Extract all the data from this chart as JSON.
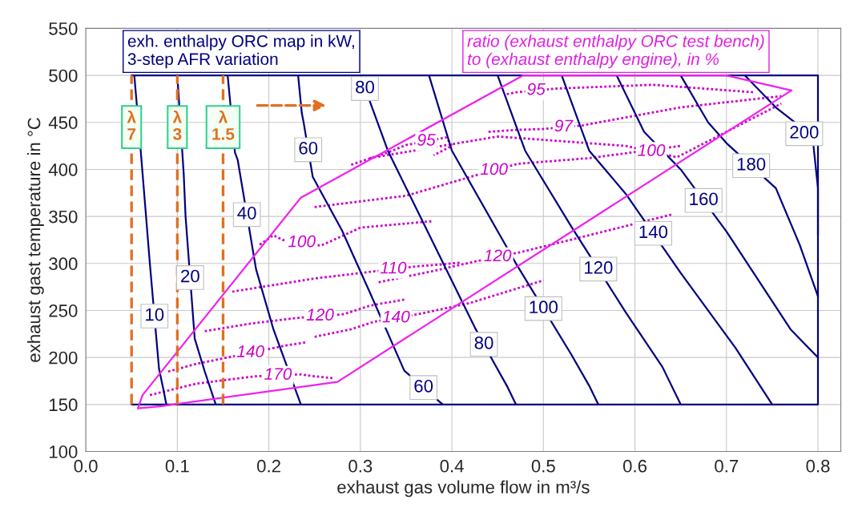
{
  "chart_data": {
    "type": "line",
    "title": "exh. enthalpy ORC map in kW,\n3-step AFR variation",
    "subtitle": "ratio (exhaust enthalpy ORC test bench)\nto (exhaust enthalpy engine), in %",
    "xlabel": "exhaust gas volume flow in m³/s",
    "ylabel": "exhaust gast temperature in °C",
    "xlim": [
      0,
      0.825
    ],
    "ylim": [
      100,
      550
    ],
    "xticks": [
      {
        "value": 0,
        "label": "0.0"
      },
      0.1,
      0.2,
      0.3,
      0.4,
      0.5,
      0.6,
      0.7,
      0.8
    ],
    "yticks": [
      100,
      150,
      200,
      250,
      300,
      350,
      400,
      450,
      500,
      550
    ],
    "grid": true,
    "annotations": [
      {
        "text": "80",
        "x": 0.305,
        "y": 486
      },
      {
        "text": "60",
        "x": 0.243,
        "y": 421
      },
      {
        "text": "80",
        "x": 0.435,
        "y": 214
      },
      {
        "text": "60",
        "x": 0.369,
        "y": 168
      }
    ],
    "series": [
      {
        "color": "#000080",
        "line_style": "solid",
        "x": [
          0.05,
          0.8,
          0.8,
          0.05
        ],
        "values": [
          150,
          150,
          500,
          500
        ]
      },
      {
        "name": "10",
        "color": "#000080",
        "line_style": "solid",
        "x": [
          0.053,
          0.06,
          0.07,
          0.08,
          0.085,
          0.088
        ],
        "values": [
          500,
          420,
          300,
          188,
          165,
          150
        ]
      },
      {
        "name": "20",
        "color": "#000080",
        "line_style": "solid",
        "x": [
          0.1,
          0.107,
          0.109,
          0.119,
          0.13,
          0.142
        ],
        "values": [
          500,
          395,
          350,
          220,
          185,
          150
        ]
      },
      {
        "name": "40",
        "color": "#000080",
        "line_style": "solid",
        "x": [
          0.155,
          0.163,
          0.166,
          0.186,
          0.205,
          0.235
        ],
        "values": [
          500,
          418,
          410,
          294,
          230,
          150
        ]
      },
      {
        "color": "#000080",
        "line_style": "solid",
        "x": [
          0.232,
          0.234,
          0.236,
          0.238,
          0.248,
          0.28,
          0.31,
          0.348,
          0.39
        ],
        "values": [
          500,
          480,
          460,
          450,
          392,
          335,
          270,
          186,
          150
        ]
      },
      {
        "color": "#000080",
        "line_style": "solid",
        "x": [
          0.3,
          0.33,
          0.425,
          0.445,
          0.46,
          0.47
        ],
        "values": [
          500,
          420,
          232,
          196,
          170,
          150
        ]
      },
      {
        "name": "100",
        "color": "#000080",
        "line_style": "solid",
        "x": [
          0.375,
          0.4,
          0.47,
          0.53,
          0.55,
          0.56
        ],
        "values": [
          500,
          420,
          300,
          204,
          170,
          150
        ]
      },
      {
        "name": "120",
        "color": "#000080",
        "line_style": "solid",
        "x": [
          0.45,
          0.48,
          0.53,
          0.59,
          0.63,
          0.65
        ],
        "values": [
          500,
          420,
          340,
          248,
          190,
          150
        ]
      },
      {
        "name": "140",
        "color": "#000080",
        "line_style": "solid",
        "x": [
          0.52,
          0.55,
          0.59,
          0.65,
          0.71,
          0.75
        ],
        "values": [
          500,
          420,
          374,
          290,
          210,
          150
        ]
      },
      {
        "name": "160",
        "color": "#000080",
        "line_style": "solid",
        "x": [
          0.58,
          0.61,
          0.65,
          0.7,
          0.77,
          0.8
        ],
        "values": [
          500,
          440,
          400,
          334,
          230,
          200
        ]
      },
      {
        "name": "180",
        "color": "#000080",
        "line_style": "solid",
        "x": [
          0.65,
          0.68,
          0.7,
          0.754,
          0.78,
          0.8
        ],
        "values": [
          500,
          450,
          428,
          380,
          320,
          265
        ]
      },
      {
        "name": "200",
        "color": "#000080",
        "line_style": "solid",
        "x": [
          0.72,
          0.755,
          0.775,
          0.795,
          0.8,
          0.8
        ],
        "values": [
          500,
          465,
          450,
          426,
          380,
          330
        ]
      },
      {
        "color": "#ee22ee",
        "line_style": "solid",
        "x": [
          0.057,
          0.062,
          0.235,
          0.478,
          0.7,
          0.771
        ],
        "values": [
          146,
          160,
          370,
          500,
          500,
          484
        ]
      },
      {
        "color": "#ee22ee",
        "line_style": "solid",
        "x": [
          0.057,
          0.081,
          0.275,
          0.771
        ],
        "values": [
          146,
          148,
          174,
          484
        ]
      },
      {
        "name": "95",
        "color": "#cc00cc",
        "line_style": "dotted",
        "x": [
          0.46,
          0.465,
          0.47,
          0.514,
          0.62,
          0.73
        ],
        "values": [
          480,
          481,
          482,
          486,
          490,
          482
        ]
      },
      {
        "name": "97",
        "color": "#cc00cc",
        "line_style": "dotted",
        "x": [
          0.44,
          0.47,
          0.5,
          0.544,
          0.65,
          0.76
        ],
        "values": [
          440,
          442,
          443,
          447,
          466,
          478
        ]
      },
      {
        "name": "95",
        "color": "#cc00cc",
        "line_style": "dotted",
        "x": [
          0.29,
          0.33,
          0.35,
          0.394,
          0.4,
          0.38
        ],
        "values": [
          405,
          418,
          426,
          434,
          425,
          415
        ]
      },
      {
        "name": "100",
        "color": "#cc00cc",
        "line_style": "dotted",
        "x": [
          0.31,
          0.45,
          0.59,
          0.646,
          0.7,
          0.76
        ],
        "values": [
          412,
          435,
          425,
          413,
          440,
          470
        ]
      },
      {
        "name": "100",
        "color": "#cc00cc",
        "line_style": "dotted",
        "x": [
          0.25,
          0.35,
          0.42,
          0.472,
          0.55,
          0.65
        ],
        "values": [
          360,
          372,
          392,
          406,
          412,
          425
        ]
      },
      {
        "name": "100",
        "color": "#cc00cc",
        "line_style": "dotted",
        "x": [
          0.19,
          0.205,
          0.215,
          0.257,
          0.3,
          0.38
        ],
        "values": [
          320,
          330,
          325,
          319,
          338,
          345
        ]
      },
      {
        "name": "110",
        "color": "#cc00cc",
        "line_style": "dotted",
        "x": [
          0.16,
          0.25,
          0.31,
          0.362,
          0.39,
          0.41
        ],
        "values": [
          270,
          284,
          291,
          297,
          299,
          301
        ]
      },
      {
        "name": "120",
        "color": "#cc00cc",
        "line_style": "dotted",
        "x": [
          0.32,
          0.38,
          0.425,
          0.475,
          0.55,
          0.64
        ],
        "values": [
          280,
          292,
          302,
          312,
          330,
          352
        ]
      },
      {
        "name": "120",
        "color": "#cc00cc",
        "line_style": "dotted",
        "x": [
          0.13,
          0.18,
          0.23,
          0.282,
          0.31,
          0.35
        ],
        "values": [
          228,
          236,
          242,
          246,
          255,
          262
        ]
      },
      {
        "name": "140",
        "color": "#cc00cc",
        "line_style": "dotted",
        "x": [
          0.25,
          0.29,
          0.315,
          0.363,
          0.42,
          0.5
        ],
        "values": [
          222,
          230,
          238,
          246,
          258,
          282
        ]
      },
      {
        "name": "140",
        "color": "#cc00cc",
        "line_style": "dotted",
        "x": [
          0.09,
          0.12,
          0.155,
          0.205,
          0.22,
          0.24
        ],
        "values": [
          185,
          193,
          200,
          210,
          213,
          216
        ]
      },
      {
        "name": "170",
        "color": "#cc00cc",
        "line_style": "dotted",
        "x": [
          0.07,
          0.12,
          0.185,
          0.235,
          0.25,
          0.27
        ],
        "values": [
          160,
          172,
          180,
          182,
          180,
          178
        ]
      },
      {
        "name": "λ\n7",
        "color": "#e07020",
        "line_style": "dashed",
        "x": [
          0.05,
          0.05,
          0.05,
          0.05
        ],
        "values": [
          150,
          400,
          490,
          500
        ]
      },
      {
        "name": "λ\n3",
        "color": "#e07020",
        "line_style": "dashed",
        "x": [
          0.1,
          0.1,
          0.1,
          0.1
        ],
        "values": [
          150,
          400,
          490,
          500
        ]
      },
      {
        "name": "λ\n1.5",
        "color": "#e07020",
        "line_style": "dashed",
        "x": [
          0.15,
          0.15,
          0.15,
          0.15
        ],
        "values": [
          150,
          400,
          490,
          500
        ]
      }
    ]
  }
}
